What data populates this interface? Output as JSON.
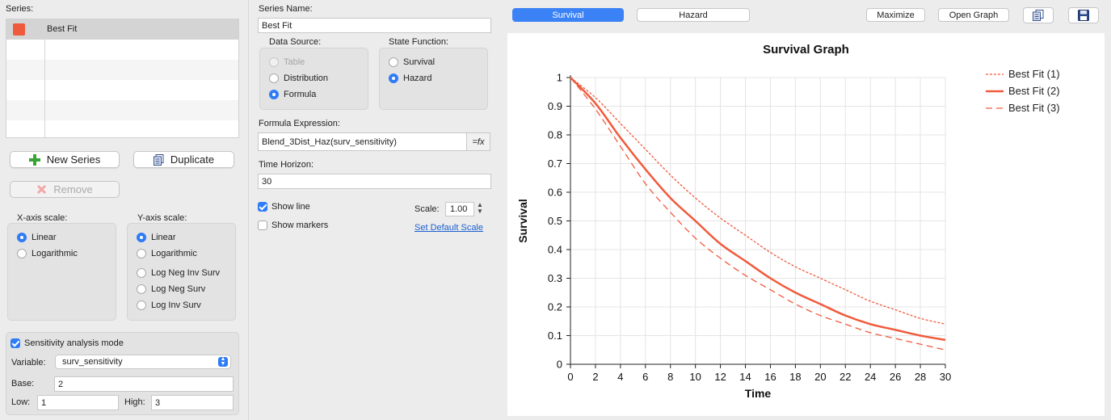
{
  "left": {
    "series_label": "Series:",
    "series": [
      {
        "name": "Best Fit",
        "color": "#f05a3c"
      }
    ],
    "new_series": "New Series",
    "duplicate": "Duplicate",
    "remove": "Remove",
    "xaxis_label": "X-axis scale:",
    "xaxis_options": [
      "Linear",
      "Logarithmic"
    ],
    "xaxis_selected": "Linear",
    "yaxis_label": "Y-axis scale:",
    "yaxis_options": [
      "Linear",
      "Logarithmic",
      "Log Neg Inv Surv",
      "Log Neg Surv",
      "Log Inv Surv"
    ],
    "yaxis_selected": "Linear",
    "sensitivity": {
      "label": "Sensitivity analysis mode",
      "checked": true,
      "variable_label": "Variable:",
      "variable_value": "surv_sensitivity",
      "base_label": "Base:",
      "base_value": "2",
      "low_label": "Low:",
      "low_value": "1",
      "high_label": "High:",
      "high_value": "3"
    }
  },
  "middle": {
    "series_name_label": "Series Name:",
    "series_name_value": "Best Fit",
    "data_source_label": "Data Source:",
    "data_source_options": [
      "Table",
      "Distribution",
      "Formula"
    ],
    "data_source_selected": "Formula",
    "state_function_label": "State Function:",
    "state_function_options": [
      "Survival",
      "Hazard"
    ],
    "state_function_selected": "Hazard",
    "formula_label": "Formula Expression:",
    "formula_value": "Blend_3Dist_Haz(surv_sensitivity)",
    "fx_label": "=fx",
    "time_horizon_label": "Time Horizon:",
    "time_horizon_value": "30",
    "show_line": "Show line",
    "show_line_checked": true,
    "show_markers": "Show markers",
    "show_markers_checked": false,
    "scale_label": "Scale:",
    "scale_value": "1.00",
    "set_default_scale": "Set Default Scale"
  },
  "toolbar": {
    "tab_survival": "Survival",
    "tab_hazard": "Hazard",
    "active_tab": "Survival",
    "maximize": "Maximize",
    "open_graph": "Open Graph",
    "copy_icon": "copy-icon",
    "save_icon": "save-icon"
  },
  "chart_data": {
    "type": "line",
    "title": "Survival Graph",
    "xlabel": "Time",
    "ylabel": "Survival",
    "xlim": [
      0,
      30
    ],
    "ylim": [
      0,
      1
    ],
    "xticks": [
      0,
      2,
      4,
      6,
      8,
      10,
      12,
      14,
      16,
      18,
      20,
      22,
      24,
      26,
      28,
      30
    ],
    "yticks": [
      0,
      0.1,
      0.2,
      0.3,
      0.4,
      0.5,
      0.6,
      0.7,
      0.8,
      0.9,
      1
    ],
    "ytick_labels": [
      "0",
      "0.1",
      "0.2",
      "0.3",
      "0.4",
      "0.5",
      "0.6",
      "0.7",
      "0.8",
      "0.9",
      "1"
    ],
    "grid": true,
    "legend_position": "top-right",
    "x": [
      0,
      2,
      4,
      6,
      8,
      10,
      12,
      14,
      16,
      18,
      20,
      22,
      24,
      26,
      28,
      30
    ],
    "series": [
      {
        "name": "Best Fit (1)",
        "style": "dotted",
        "color": "#f05a3c",
        "values": [
          1.0,
          0.93,
          0.84,
          0.75,
          0.66,
          0.58,
          0.51,
          0.45,
          0.39,
          0.34,
          0.3,
          0.26,
          0.22,
          0.19,
          0.16,
          0.14
        ]
      },
      {
        "name": "Best Fit (2)",
        "style": "solid",
        "color": "#f05a3c",
        "values": [
          1.0,
          0.91,
          0.79,
          0.68,
          0.58,
          0.5,
          0.42,
          0.36,
          0.3,
          0.25,
          0.21,
          0.17,
          0.14,
          0.12,
          0.1,
          0.085
        ]
      },
      {
        "name": "Best Fit (3)",
        "style": "dashed",
        "color": "#f05a3c",
        "values": [
          1.0,
          0.89,
          0.76,
          0.63,
          0.53,
          0.44,
          0.37,
          0.31,
          0.26,
          0.21,
          0.17,
          0.14,
          0.11,
          0.09,
          0.07,
          0.05
        ]
      }
    ]
  }
}
